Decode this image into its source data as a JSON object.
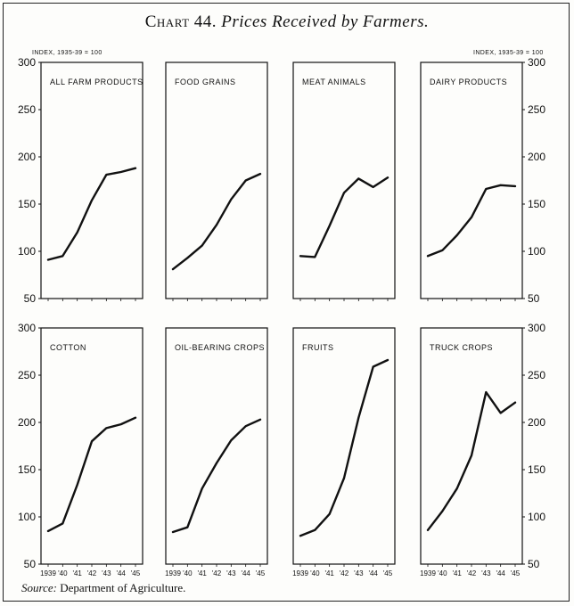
{
  "title": {
    "number": "Chart 44.",
    "subtitle": "Prices Received by Farmers."
  },
  "index_note_left": "INDEX, 1935-39 = 100",
  "index_note_right": "INDEX, 1935-39 = 100",
  "source": {
    "label": "Source:",
    "text": "Department of Agriculture."
  },
  "colors": {
    "line": "#111111",
    "paper": "#fdfdfb"
  },
  "chart_data": [
    {
      "type": "line",
      "title": "ALL FARM PRODUCTS",
      "x": [
        "1939",
        "'40",
        "'41",
        "'42",
        "'43",
        "'44",
        "'45"
      ],
      "y_ticks": [
        50,
        100,
        150,
        200,
        250,
        300
      ],
      "ylim": [
        50,
        300
      ],
      "values": [
        91,
        95,
        120,
        154,
        181,
        184,
        188
      ]
    },
    {
      "type": "line",
      "title": "FOOD GRAINS",
      "x": [
        "1939",
        "'40",
        "'41",
        "'42",
        "'43",
        "'44",
        "'45"
      ],
      "y_ticks": [
        50,
        100,
        150,
        200,
        250,
        300
      ],
      "ylim": [
        50,
        300
      ],
      "values": [
        81,
        93,
        106,
        128,
        155,
        175,
        182
      ]
    },
    {
      "type": "line",
      "title": "MEAT ANIMALS",
      "x": [
        "1939",
        "'40",
        "'41",
        "'42",
        "'43",
        "'44",
        "'45"
      ],
      "y_ticks": [
        50,
        100,
        150,
        200,
        250,
        300
      ],
      "ylim": [
        50,
        300
      ],
      "values": [
        95,
        94,
        127,
        162,
        177,
        168,
        178
      ]
    },
    {
      "type": "line",
      "title": "DAIRY PRODUCTS",
      "x": [
        "1939",
        "'40",
        "'41",
        "'42",
        "'43",
        "'44",
        "'45"
      ],
      "y_ticks": [
        50,
        100,
        150,
        200,
        250,
        300
      ],
      "ylim": [
        50,
        300
      ],
      "values": [
        95,
        101,
        117,
        136,
        166,
        170,
        169
      ]
    },
    {
      "type": "line",
      "title": "COTTON",
      "x": [
        "1939",
        "'40",
        "'41",
        "'42",
        "'43",
        "'44",
        "'45"
      ],
      "y_ticks": [
        50,
        100,
        150,
        200,
        250,
        300
      ],
      "ylim": [
        50,
        300
      ],
      "values": [
        85,
        93,
        134,
        180,
        194,
        198,
        205
      ]
    },
    {
      "type": "line",
      "title": "OIL-BEARING CROPS",
      "x": [
        "1939",
        "'40",
        "'41",
        "'42",
        "'43",
        "'44",
        "'45"
      ],
      "y_ticks": [
        50,
        100,
        150,
        200,
        250,
        300
      ],
      "ylim": [
        50,
        300
      ],
      "values": [
        84,
        89,
        130,
        157,
        181,
        196,
        203
      ]
    },
    {
      "type": "line",
      "title": "FRUITS",
      "x": [
        "1939",
        "'40",
        "'41",
        "'42",
        "'43",
        "'44",
        "'45"
      ],
      "y_ticks": [
        50,
        100,
        150,
        200,
        250,
        300
      ],
      "ylim": [
        50,
        300
      ],
      "values": [
        80,
        86,
        103,
        141,
        205,
        259,
        266
      ]
    },
    {
      "type": "line",
      "title": "TRUCK CROPS",
      "x": [
        "1939",
        "'40",
        "'41",
        "'42",
        "'43",
        "'44",
        "'45"
      ],
      "y_ticks": [
        50,
        100,
        150,
        200,
        250,
        300
      ],
      "ylim": [
        50,
        300
      ],
      "values": [
        86,
        106,
        130,
        165,
        232,
        210,
        221
      ]
    }
  ]
}
